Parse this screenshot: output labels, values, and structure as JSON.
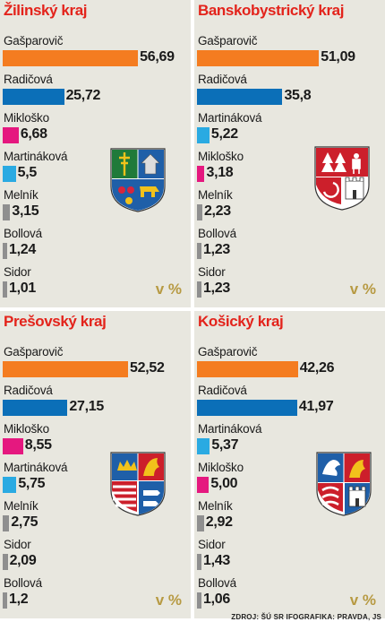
{
  "colors": {
    "orange": "#f47c20",
    "blue": "#0b6fb8",
    "magenta": "#e5187f",
    "cyan": "#2aaae2",
    "gray": "#8f8f8f",
    "title": "#e3231b",
    "panel_bg": "#e8e7df",
    "unit": "#b79a43"
  },
  "chart_data": [
    {
      "type": "bar",
      "title": "Žilinský kraj",
      "unit": "v %",
      "crest": "zilina-coat-of-arms",
      "categories": [
        "Gašparovič",
        "Radičová",
        "Mikloško",
        "Martináková",
        "Melník",
        "Bollová",
        "Sidor"
      ],
      "values": [
        56.69,
        25.72,
        6.68,
        5.5,
        3.15,
        1.24,
        1.01
      ],
      "labels": [
        "56,69",
        "25,72",
        "6,68",
        "5,5",
        "3,15",
        "1,24",
        "1,01"
      ],
      "colors": [
        "orange",
        "blue",
        "magenta",
        "cyan",
        "gray",
        "gray",
        "gray"
      ]
    },
    {
      "type": "bar",
      "title": "Banskobystrický kraj",
      "unit": "v %",
      "crest": "banska-bystrica-coat-of-arms",
      "categories": [
        "Gašparovič",
        "Radičová",
        "Martináková",
        "Mikloško",
        "Melník",
        "Bollová",
        "Sidor"
      ],
      "values": [
        51.09,
        35.8,
        5.22,
        3.18,
        2.23,
        1.23,
        1.23
      ],
      "labels": [
        "51,09",
        "35,8",
        "5,22",
        "3,18",
        "2,23",
        "1,23",
        "1,23"
      ],
      "colors": [
        "orange",
        "blue",
        "cyan",
        "magenta",
        "gray",
        "gray",
        "gray"
      ]
    },
    {
      "type": "bar",
      "title": "Prešovský kraj",
      "unit": "v %",
      "crest": "presov-coat-of-arms",
      "categories": [
        "Gašparovič",
        "Radičová",
        "Mikloško",
        "Martináková",
        "Melník",
        "Sidor",
        "Bollová"
      ],
      "values": [
        52.52,
        27.15,
        8.55,
        5.75,
        2.75,
        2.09,
        1.2
      ],
      "labels": [
        "52,52",
        "27,15",
        "8,55",
        "5,75",
        "2,75",
        "2,09",
        "1,2"
      ],
      "colors": [
        "orange",
        "blue",
        "magenta",
        "cyan",
        "gray",
        "gray",
        "gray"
      ]
    },
    {
      "type": "bar",
      "title": "Košický kraj",
      "unit": "v %",
      "crest": "kosice-coat-of-arms",
      "categories": [
        "Gašparovič",
        "Radičová",
        "Martináková",
        "Mikloško",
        "Melník",
        "Sidor",
        "Bollová"
      ],
      "values": [
        42.26,
        41.97,
        5.37,
        5.0,
        2.92,
        1.43,
        1.06
      ],
      "labels": [
        "42,26",
        "41,97",
        "5,37",
        "5,00",
        "2,92",
        "1,43",
        "1,06"
      ],
      "colors": [
        "orange",
        "blue",
        "cyan",
        "magenta",
        "gray",
        "gray",
        "gray"
      ]
    }
  ],
  "footer": {
    "source": "ZDROJ: ŠÚ SR IFOGRAFIKA: PRAVDA, JS"
  }
}
